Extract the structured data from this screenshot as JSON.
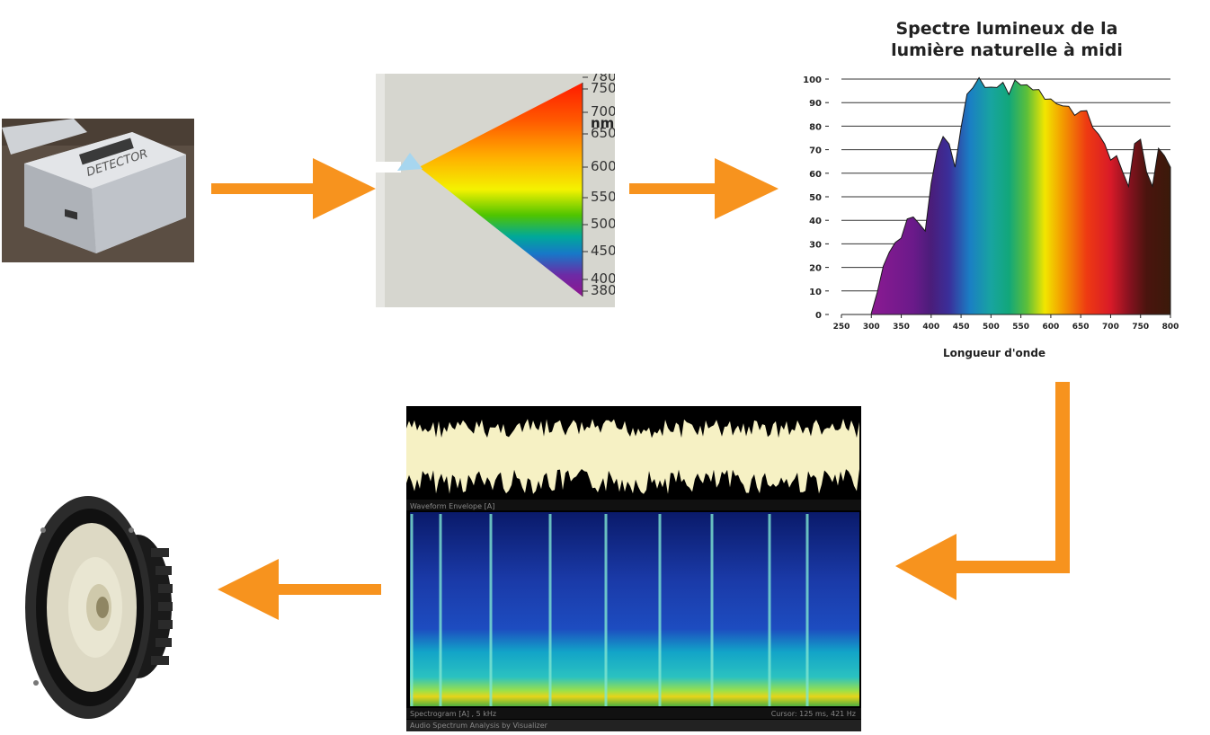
{
  "detector": {
    "brand_text": "DETECTOR"
  },
  "prism": {
    "unit": "nm",
    "scale_labels": [
      "780",
      "750",
      "700",
      "650",
      "600",
      "550",
      "500",
      "450",
      "400",
      "380"
    ]
  },
  "spectrum_chart": {
    "title_line1": "Spectre lumineux de la",
    "title_line2": "lumière naturelle à midi",
    "xlabel": "Longueur d'onde"
  },
  "chart_data": {
    "type": "area",
    "title": "Spectre lumineux de la lumière naturelle à midi",
    "xlabel": "Longueur d'onde",
    "ylabel": "",
    "xlim": [
      250,
      800
    ],
    "ylim": [
      0,
      100
    ],
    "x_ticks": [
      250,
      300,
      350,
      400,
      450,
      500,
      550,
      600,
      650,
      700,
      750,
      800
    ],
    "y_ticks": [
      0,
      10,
      20,
      30,
      40,
      50,
      60,
      70,
      80,
      90,
      100
    ],
    "grid": true,
    "series": [
      {
        "x": [
          300,
          310,
          320,
          330,
          340,
          350,
          360,
          370,
          380,
          390,
          400,
          410,
          420,
          430,
          440,
          450,
          460,
          470,
          480,
          490,
          500,
          510,
          520,
          530,
          540,
          550,
          560,
          570,
          580,
          590,
          600,
          610,
          620,
          630,
          640,
          650,
          660,
          670,
          680,
          690,
          700,
          710,
          720,
          730,
          740,
          750,
          760,
          770,
          780,
          790,
          800
        ],
        "values": [
          0,
          10,
          20,
          27,
          30,
          33,
          40,
          42,
          38,
          36,
          55,
          70,
          75,
          73,
          62,
          80,
          93,
          97,
          100,
          97,
          96,
          97,
          98,
          94,
          99,
          98,
          97,
          96,
          95,
          92,
          91,
          90,
          88,
          89,
          84,
          87,
          86,
          80,
          76,
          73,
          65,
          68,
          60,
          55,
          72,
          75,
          60,
          55,
          70,
          68,
          62
        ]
      }
    ]
  },
  "spectrogram": {
    "waveform_label": "Waveform Envelope [A]",
    "spectrogram_label": "Spectrogram [A] , 5 kHz",
    "cursor_label": "Cursor: 125 ms, 421 Hz",
    "footer_label": "Audio Spectrum Analysis by Visualizer"
  },
  "colors": {
    "arrow": "#f7931e",
    "detector_bg": "#5a4d42",
    "prism_bg": "#d6d6cf"
  }
}
